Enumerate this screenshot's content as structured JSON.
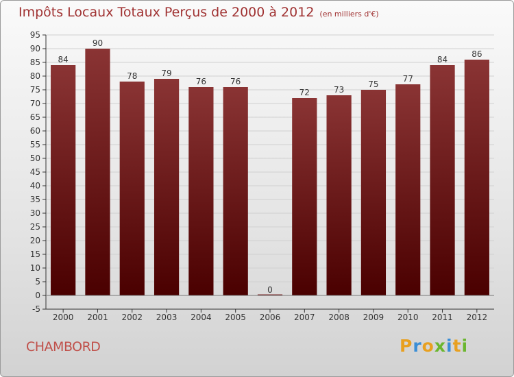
{
  "header": {
    "title": "Impôts Locaux Totaux Perçus de 2000 à 2012",
    "unit_note": "(en milliers d'€)"
  },
  "footer": {
    "city": "CHAMBORD",
    "logo": "Proxiti"
  },
  "colors": {
    "title": "#a03232",
    "bar_top": "#8a3434",
    "bar_bottom": "#4a0000"
  },
  "chart_data": {
    "type": "bar",
    "title": "Impôts Locaux Totaux Perçus de 2000 à 2012",
    "categories": [
      "2000",
      "2001",
      "2002",
      "2003",
      "2004",
      "2005",
      "2006",
      "2007",
      "2008",
      "2009",
      "2010",
      "2011",
      "2012"
    ],
    "values": [
      84,
      90,
      78,
      79,
      76,
      76,
      0,
      72,
      73,
      75,
      77,
      84,
      86
    ],
    "ylim": [
      -5,
      95
    ],
    "yticks": [
      -5,
      0,
      5,
      10,
      15,
      20,
      25,
      30,
      35,
      40,
      45,
      50,
      55,
      60,
      65,
      70,
      75,
      80,
      85,
      90,
      95
    ],
    "grid": true,
    "data_labels": true
  }
}
